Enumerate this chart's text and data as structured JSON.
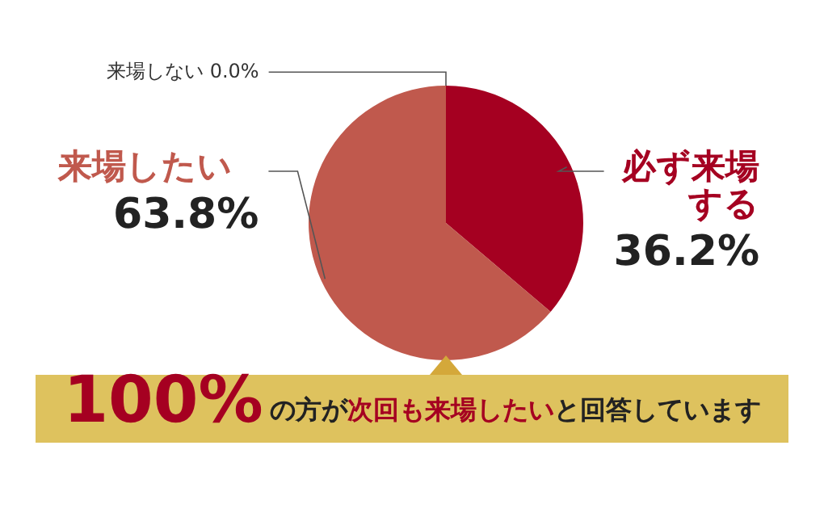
{
  "chart_data": {
    "type": "pie",
    "categories": [
      "必ず来場する",
      "来場したい",
      "来場しない"
    ],
    "values": [
      36.2,
      63.8,
      0.0
    ],
    "colors": [
      "#a50021",
      "#c0594d",
      "#888888"
    ],
    "value_labels": [
      "36.2%",
      "63.8%",
      "0.0%"
    ],
    "legend": false,
    "annotations": [
      "100%",
      "の方が",
      "次回も来場したい",
      "と回答しています"
    ]
  }
}
